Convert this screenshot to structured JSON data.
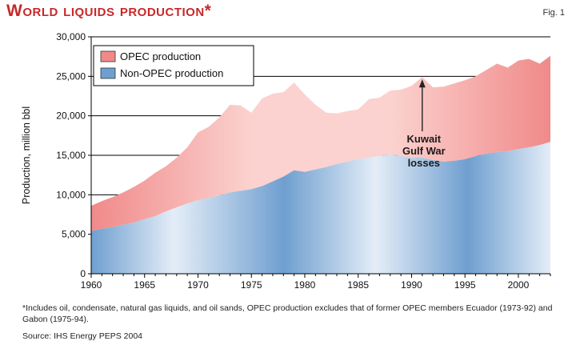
{
  "header": {
    "title": "World liquids production*",
    "fig_label": "Fig. 1"
  },
  "footnote": "*Includes oil, condensate, natural gas liquids, and oil sands, OPEC production excludes that of former OPEC members Ecuador (1973-92) and Gabon (1975-94).",
  "source": "Source: IHS Energy PEPS 2004",
  "colors": {
    "title": "#c8282a",
    "opec_fill": "#f08a8a",
    "opec_fill_light": "#fbd2cf",
    "non_opec_fill": "#6f9fd0",
    "non_opec_fill_light": "#e4edf7",
    "annotation_line": "#222222"
  },
  "chart_data": {
    "type": "area",
    "stacked": true,
    "title": "World liquids production*",
    "ylabel": "Production, million bbl",
    "xlabel": "",
    "xlim": [
      1960,
      2003
    ],
    "ylim": [
      0,
      30000
    ],
    "x_ticks": [
      "1960",
      "1965",
      "1970",
      "1975",
      "1980",
      "1985",
      "1990",
      "1995",
      "2000"
    ],
    "y_ticks": [
      "0",
      "5,000",
      "10,000",
      "15,000",
      "20,000",
      "25,000",
      "30,000"
    ],
    "grid": "horizontal",
    "legend_position": "top-left",
    "x": [
      1960,
      1961,
      1962,
      1963,
      1964,
      1965,
      1966,
      1967,
      1968,
      1969,
      1970,
      1971,
      1972,
      1973,
      1974,
      1975,
      1976,
      1977,
      1978,
      1979,
      1980,
      1981,
      1982,
      1983,
      1984,
      1985,
      1986,
      1987,
      1988,
      1989,
      1990,
      1991,
      1992,
      1993,
      1994,
      1995,
      1996,
      1997,
      1998,
      1999,
      2000,
      2001,
      2002,
      2003
    ],
    "series": [
      {
        "name": "Non-OPEC production",
        "values": [
          5400,
          5700,
          5900,
          6200,
          6500,
          6900,
          7300,
          7900,
          8400,
          8900,
          9300,
          9600,
          9900,
          10300,
          10500,
          10700,
          11100,
          11700,
          12300,
          13100,
          12900,
          13200,
          13500,
          13900,
          14200,
          14500,
          14700,
          14900,
          15100,
          14900,
          14700,
          14700,
          14400,
          14200,
          14300,
          14500,
          14900,
          15200,
          15400,
          15500,
          15800,
          16000,
          16300,
          16700
        ]
      },
      {
        "name": "OPEC production",
        "values": [
          3200,
          3500,
          3800,
          4100,
          4500,
          4900,
          5500,
          5700,
          6300,
          7100,
          8600,
          9000,
          9900,
          11100,
          10800,
          9700,
          11100,
          11100,
          10700,
          11100,
          9800,
          8200,
          6900,
          6400,
          6400,
          6300,
          7400,
          7400,
          8100,
          8400,
          9100,
          10200,
          9200,
          9500,
          9800,
          10000,
          10100,
          10600,
          11200,
          10600,
          11200,
          11200,
          10300,
          10900
        ]
      }
    ],
    "annotation": {
      "lines": [
        "Kuwait",
        "Gulf War",
        "losses"
      ],
      "x": 1991,
      "y": 24800
    }
  }
}
